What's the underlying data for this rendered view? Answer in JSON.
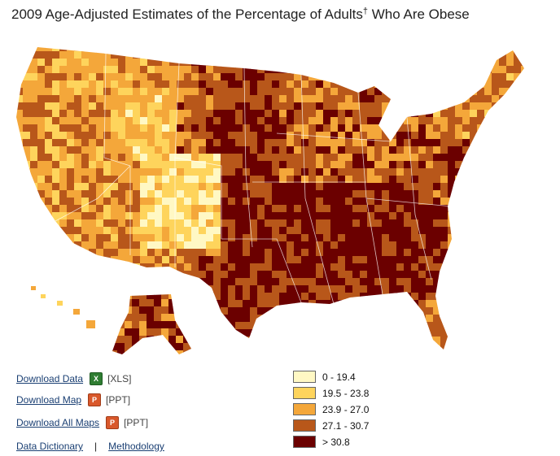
{
  "title": "2009 Age-Adjusted Estimates of the Percentage of Adults",
  "title_mark": "†",
  "title_suffix": "Who Are Obese",
  "colors": {
    "c1": "#fff8c4",
    "c2": "#fed45c",
    "c3": "#f4a73a",
    "c4": "#b8571a",
    "c5": "#6b0000"
  },
  "links": {
    "download_data": "Download Data",
    "download_data_fmt": "[XLS]",
    "download_map": "Download Map",
    "download_map_fmt": "[PPT]",
    "download_all_maps": "Download All Maps",
    "download_all_maps_fmt": "[PPT]",
    "data_dictionary": "Data Dictionary",
    "separator": "|",
    "methodology": "Methodology"
  },
  "legend": [
    {
      "label": "0 - 19.4",
      "color": "#fff8c4"
    },
    {
      "label": "19.5 - 23.8",
      "color": "#fed45c"
    },
    {
      "label": "23.9 - 27.0",
      "color": "#f4a73a"
    },
    {
      "label": "27.1 - 30.7",
      "color": "#b8571a"
    },
    {
      "label": "> 30.8",
      "color": "#6b0000"
    }
  ]
}
